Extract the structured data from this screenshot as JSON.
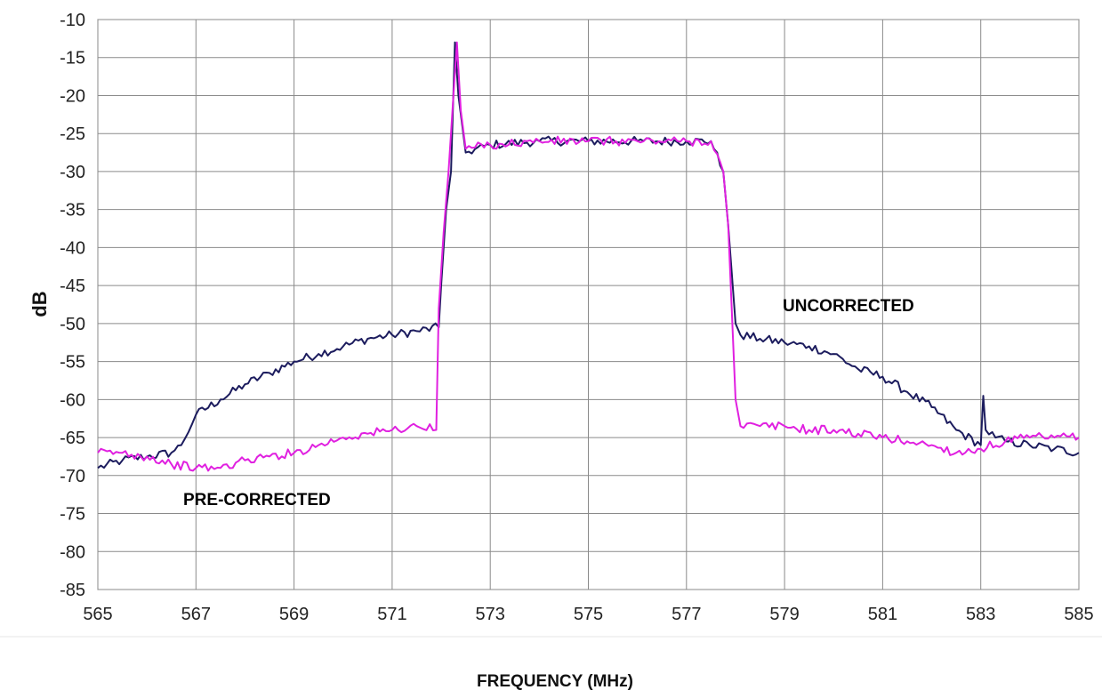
{
  "chart_data": {
    "type": "line",
    "xlabel": "FREQUENCY (MHz)",
    "ylabel": "dB",
    "xlim": [
      565,
      585
    ],
    "ylim": [
      -85,
      -10
    ],
    "x_ticks": [
      "565",
      "567",
      "569",
      "571",
      "573",
      "575",
      "577",
      "579",
      "581",
      "583",
      "585"
    ],
    "y_ticks": [
      "-10",
      "-15",
      "-20",
      "-25",
      "-30",
      "-35",
      "-40",
      "-45",
      "-50",
      "-55",
      "-60",
      "-65",
      "-70",
      "-75",
      "-80",
      "-85"
    ],
    "grid": true,
    "series": [
      {
        "name": "UNCORRECTED",
        "color": "#1c1c5e",
        "x": [
          565,
          565.5,
          566,
          566.5,
          566.7,
          567,
          567.5,
          568,
          568.5,
          569,
          569.5,
          570,
          570.5,
          571,
          571.5,
          571.95,
          572.0,
          572.1,
          572.2,
          572.28,
          572.35,
          572.5,
          573,
          574,
          575,
          576,
          577,
          577.5,
          577.75,
          577.85,
          578.0,
          578.1,
          578.5,
          579,
          579.5,
          580,
          580.5,
          581,
          581.5,
          582,
          582.5,
          583,
          583.05,
          583.1,
          583.3,
          583.5,
          584,
          584.5,
          585
        ],
        "y": [
          -69,
          -68,
          -67.5,
          -67,
          -66,
          -62,
          -60,
          -58,
          -56.5,
          -55,
          -54,
          -53,
          -52,
          -51.5,
          -51,
          -50.5,
          -45,
          -35,
          -30,
          -13,
          -20,
          -27.5,
          -26.5,
          -26,
          -26,
          -26,
          -26,
          -26,
          -30,
          -37,
          -50,
          -51.5,
          -52,
          -52.5,
          -53,
          -54,
          -56,
          -57,
          -59,
          -61,
          -64,
          -66,
          -59.5,
          -64,
          -65,
          -65.5,
          -66,
          -66.5,
          -67
        ]
      },
      {
        "name": "PRE-CORRECTED",
        "color": "#e020e0",
        "x": [
          565,
          565.5,
          566,
          566.5,
          567,
          567.5,
          568,
          568.5,
          569,
          569.5,
          570,
          570.5,
          571,
          571.5,
          571.9,
          571.95,
          572.05,
          572.15,
          572.25,
          572.32,
          572.4,
          572.5,
          573,
          574,
          575,
          576,
          577,
          577.5,
          577.75,
          577.85,
          578.0,
          578.1,
          578.5,
          579,
          579.5,
          580,
          580.5,
          581,
          581.5,
          582,
          582.5,
          583,
          583.5,
          584,
          584.5,
          585
        ],
        "y": [
          -67,
          -67,
          -67.5,
          -68.5,
          -69,
          -69,
          -68,
          -67.5,
          -67,
          -66,
          -65,
          -64.5,
          -64,
          -63.5,
          -64,
          -48,
          -38,
          -30,
          -20,
          -13,
          -22,
          -27,
          -26.5,
          -26,
          -26,
          -26,
          -26,
          -26,
          -30,
          -37,
          -60,
          -63.5,
          -63.5,
          -63.5,
          -64,
          -64,
          -64.5,
          -65,
          -65.5,
          -66,
          -67,
          -66.5,
          -65.5,
          -65,
          -65,
          -65
        ]
      }
    ],
    "annotations": [
      {
        "text": "UNCORRECTED",
        "color": "#000000"
      },
      {
        "text": "PRE-CORRECTED",
        "color": "#7030a0"
      }
    ]
  }
}
